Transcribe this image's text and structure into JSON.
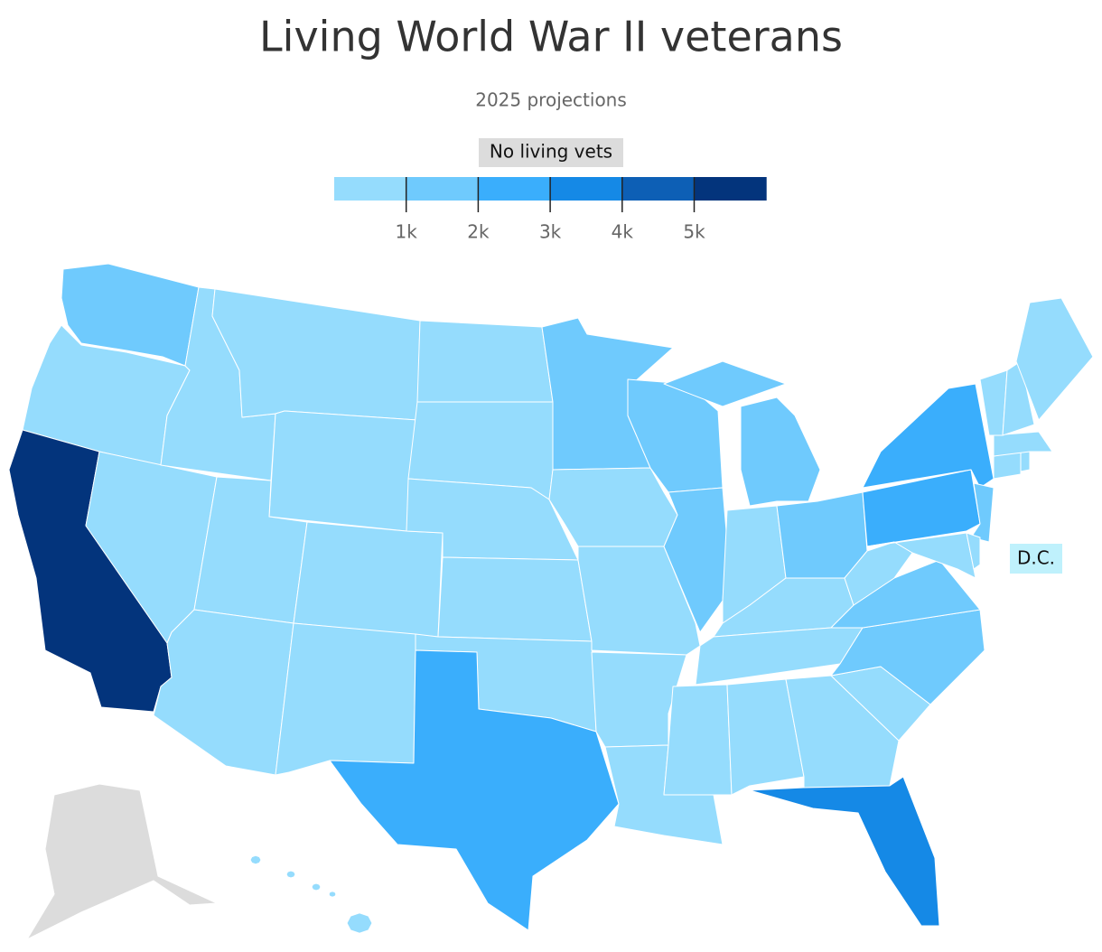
{
  "chart_data": {
    "type": "choropleth",
    "title": "Living World War II veterans",
    "subtitle": "2025 projections",
    "legend": {
      "colors": [
        "#95dcfd",
        "#6fcafd",
        "#3aaefc",
        "#1589e6",
        "#0d5fb5",
        "#03347c"
      ],
      "ticks": [
        {
          "value": 1000,
          "label": "1k"
        },
        {
          "value": 2000,
          "label": "2k"
        },
        {
          "value": 3000,
          "label": "3k"
        },
        {
          "value": 4000,
          "label": "4k"
        },
        {
          "value": 5000,
          "label": "5k"
        }
      ],
      "zero_label": "No living vets",
      "zero_color": "#dcdcdc"
    },
    "values": [
      1500,
      500,
      5600,
      500,
      500,
      500,
      500,
      500,
      500,
      500,
      500,
      500,
      500,
      500,
      500,
      500,
      2700,
      1500,
      500,
      500,
      500,
      500,
      1500,
      1500,
      1500,
      500,
      1500,
      500,
      500,
      500,
      500,
      500,
      500,
      1500,
      1500,
      500,
      2300,
      2600,
      1500,
      500,
      500,
      500,
      500,
      500,
      500,
      500,
      500,
      3400,
      0,
      500
    ],
    "annotations": [
      "D.C."
    ]
  }
}
